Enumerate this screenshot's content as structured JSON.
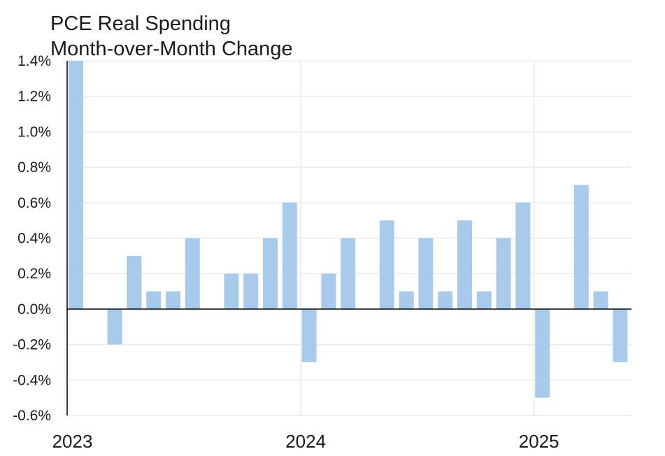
{
  "chart_data": {
    "type": "bar",
    "title": "PCE Real Spending",
    "subtitle": "Month-over-Month Change",
    "xlabel": "",
    "ylabel": "",
    "ylim": [
      -0.6,
      1.4
    ],
    "yticks": [
      "1.4%",
      "1.2%",
      "1.0%",
      "0.8%",
      "0.6%",
      "0.4%",
      "0.2%",
      "0.0%",
      "-0.2%",
      "-0.4%",
      "-0.6%"
    ],
    "xticks": [
      "2023",
      "2024",
      "2025"
    ],
    "grid": true,
    "bar_color": "#a8cbec",
    "categories": [
      "2023-01",
      "2023-02",
      "2023-03",
      "2023-04",
      "2023-05",
      "2023-06",
      "2023-07",
      "2023-08",
      "2023-09",
      "2023-10",
      "2023-11",
      "2023-12",
      "2024-01",
      "2024-02",
      "2024-03",
      "2024-04",
      "2024-05",
      "2024-06",
      "2024-07",
      "2024-08",
      "2024-09",
      "2024-10",
      "2024-11",
      "2024-12",
      "2025-01",
      "2025-02",
      "2025-03",
      "2025-04",
      "2025-05"
    ],
    "values": [
      1.4,
      0.0,
      -0.2,
      0.3,
      0.1,
      0.1,
      0.4,
      0.0,
      0.2,
      0.2,
      0.4,
      0.6,
      -0.3,
      0.2,
      0.4,
      0.0,
      0.5,
      0.1,
      0.4,
      0.1,
      0.5,
      0.1,
      0.4,
      0.6,
      -0.5,
      0.0,
      0.7,
      0.1,
      -0.3
    ]
  }
}
